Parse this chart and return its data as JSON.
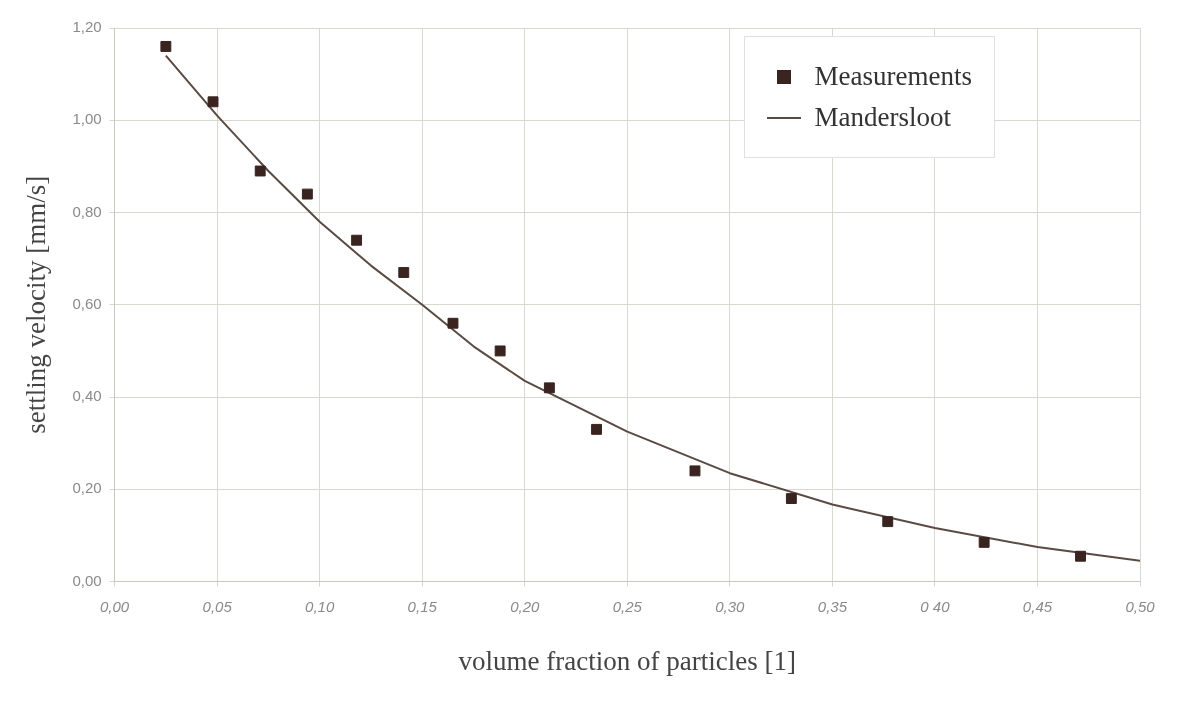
{
  "chart_data": {
    "type": "scatter",
    "xlabel": "volume fraction of particles [1]",
    "ylabel": "settling velocity [mm/s]",
    "xlim": [
      0,
      0.5
    ],
    "ylim": [
      0,
      1.2
    ],
    "xticks": [
      {
        "value": 0,
        "label": "0,00"
      },
      {
        "value": 0.05,
        "label": "0,05"
      },
      {
        "value": 0.1,
        "label": "0,10"
      },
      {
        "value": 0.15,
        "label": "0,15"
      },
      {
        "value": 0.2,
        "label": "0,20"
      },
      {
        "value": 0.25,
        "label": "0,25"
      },
      {
        "value": 0.3,
        "label": "0,30"
      },
      {
        "value": 0.35,
        "label": "0,35"
      },
      {
        "value": 0.4,
        "label": "0 40"
      },
      {
        "value": 0.45,
        "label": "0,45"
      },
      {
        "value": 0.5,
        "label": "0,50"
      }
    ],
    "yticks": [
      {
        "value": 0,
        "label": "0,00"
      },
      {
        "value": 0.2,
        "label": "0,20"
      },
      {
        "value": 0.4,
        "label": "0,40"
      },
      {
        "value": 0.6,
        "label": "0,60"
      },
      {
        "value": 0.8,
        "label": "0,80"
      },
      {
        "value": 1,
        "label": "1,00"
      },
      {
        "value": 1.2,
        "label": "1,20"
      }
    ],
    "grid": true,
    "legend": "top right",
    "series": [
      {
        "name": "Measurements",
        "marker": "square",
        "color": "#3a2420",
        "x": [
          0.025,
          0.048,
          0.071,
          0.094,
          0.118,
          0.141,
          0.165,
          0.188,
          0.212,
          0.235,
          0.283,
          0.33,
          0.377,
          0.424,
          0.471
        ],
        "values": [
          1.16,
          1.04,
          0.89,
          0.84,
          0.74,
          0.67,
          0.56,
          0.5,
          0.42,
          0.33,
          0.24,
          0.18,
          0.13,
          0.085,
          0.055
        ]
      },
      {
        "name": "Mandersloot",
        "type": "line",
        "marker": "none",
        "line_style": "solid",
        "color": "#5a4a42",
        "x": [
          0.025,
          0.05,
          0.075,
          0.1,
          0.125,
          0.15,
          0.175,
          0.2,
          0.25,
          0.3,
          0.35,
          0.4,
          0.45,
          0.5
        ],
        "values": [
          1.14,
          1.01,
          0.89,
          0.78,
          0.685,
          0.6,
          0.51,
          0.435,
          0.325,
          0.235,
          0.167,
          0.116,
          0.075,
          0.045
        ]
      }
    ]
  }
}
